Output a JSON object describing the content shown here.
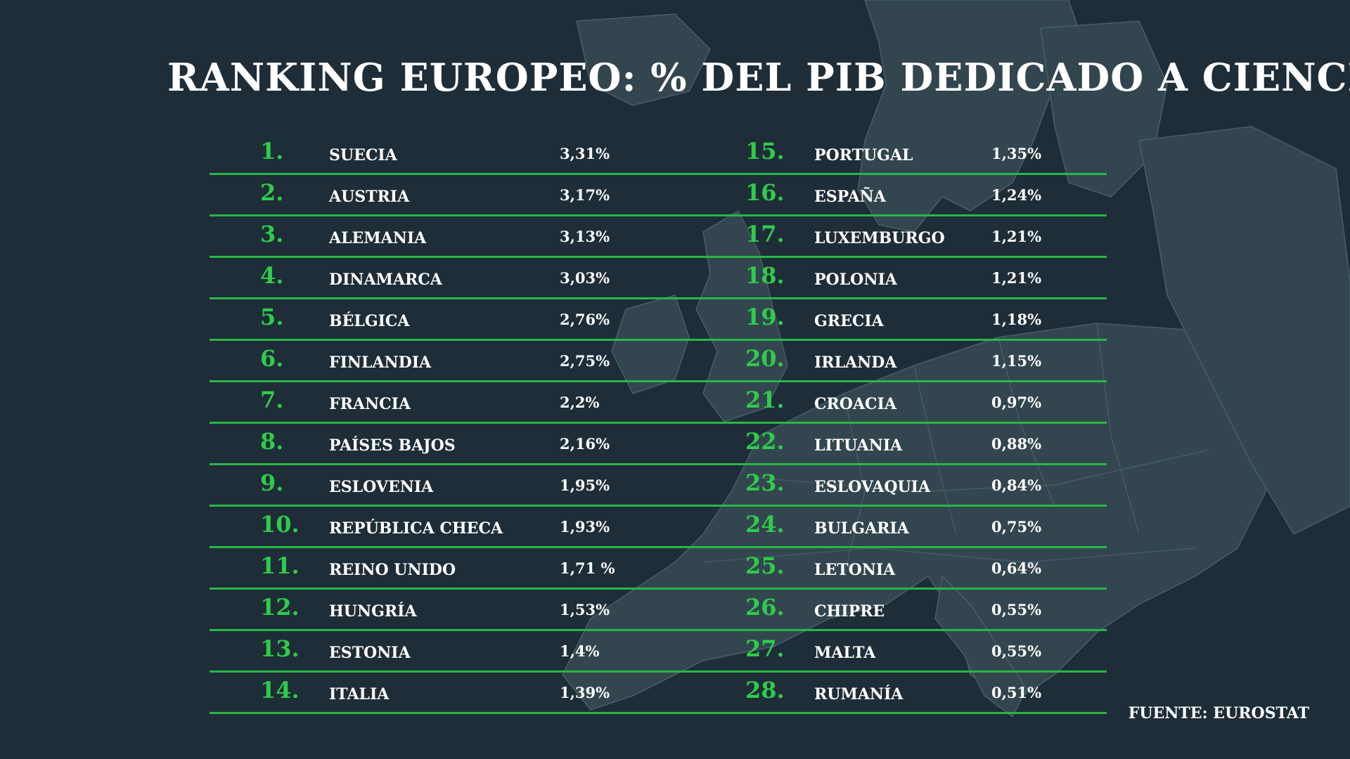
{
  "title": "RANKING EUROPEO: % DEL PIB DEDICADO A CIENCIA",
  "source": "FUENTE: EUROSTAT",
  "colors": {
    "background": "#1e2d38",
    "accent": "#2ecc4a",
    "text": "#ffffff",
    "map": "#3a4d58"
  },
  "left_column": [
    {
      "rank": "1.",
      "country": "SUECIA",
      "value": "3,31%"
    },
    {
      "rank": "2.",
      "country": "AUSTRIA",
      "value": "3,17%"
    },
    {
      "rank": "3.",
      "country": "ALEMANIA",
      "value": "3,13%"
    },
    {
      "rank": "4.",
      "country": "DINAMARCA",
      "value": "3,03%"
    },
    {
      "rank": "5.",
      "country": "BÉLGICA",
      "value": "2,76%"
    },
    {
      "rank": "6.",
      "country": "FINLANDIA",
      "value": "2,75%"
    },
    {
      "rank": "7.",
      "country": "FRANCIA",
      "value": "2,2%"
    },
    {
      "rank": "8.",
      "country": "PAÍSES BAJOS",
      "value": "2,16%"
    },
    {
      "rank": "9.",
      "country": "ESLOVENIA",
      "value": "1,95%"
    },
    {
      "rank": "10.",
      "country": "REPÚBLICA CHECA",
      "value": "1,93%"
    },
    {
      "rank": "11.",
      "country": "REINO UNIDO",
      "value": "1,71 %"
    },
    {
      "rank": "12.",
      "country": "HUNGRÍA",
      "value": "1,53%"
    },
    {
      "rank": "13.",
      "country": "ESTONIA",
      "value": "1,4%"
    },
    {
      "rank": "14.",
      "country": "ITALIA",
      "value": "1,39%"
    }
  ],
  "right_column": [
    {
      "rank": "15.",
      "country": "PORTUGAL",
      "value": "1,35%"
    },
    {
      "rank": "16.",
      "country": "ESPAÑA",
      "value": "1,24%"
    },
    {
      "rank": "17.",
      "country": "LUXEMBURGO",
      "value": "1,21%"
    },
    {
      "rank": "18.",
      "country": "POLONIA",
      "value": "1,21%"
    },
    {
      "rank": "19.",
      "country": "GRECIA",
      "value": "1,18%"
    },
    {
      "rank": "20.",
      "country": "IRLANDA",
      "value": "1,15%"
    },
    {
      "rank": "21.",
      "country": "CROACIA",
      "value": "0,97%"
    },
    {
      "rank": "22.",
      "country": "LITUANIA",
      "value": "0,88%"
    },
    {
      "rank": "23.",
      "country": "ESLOVAQUIA",
      "value": "0,84%"
    },
    {
      "rank": "24.",
      "country": "BULGARIA",
      "value": "0,75%"
    },
    {
      "rank": "25.",
      "country": "LETONIA",
      "value": "0,64%"
    },
    {
      "rank": "26.",
      "country": "CHIPRE",
      "value": "0,55%"
    },
    {
      "rank": "27.",
      "country": "MALTA",
      "value": "0,55%"
    },
    {
      "rank": "28.",
      "country": "RUMANÍA",
      "value": "0,51%"
    }
  ]
}
